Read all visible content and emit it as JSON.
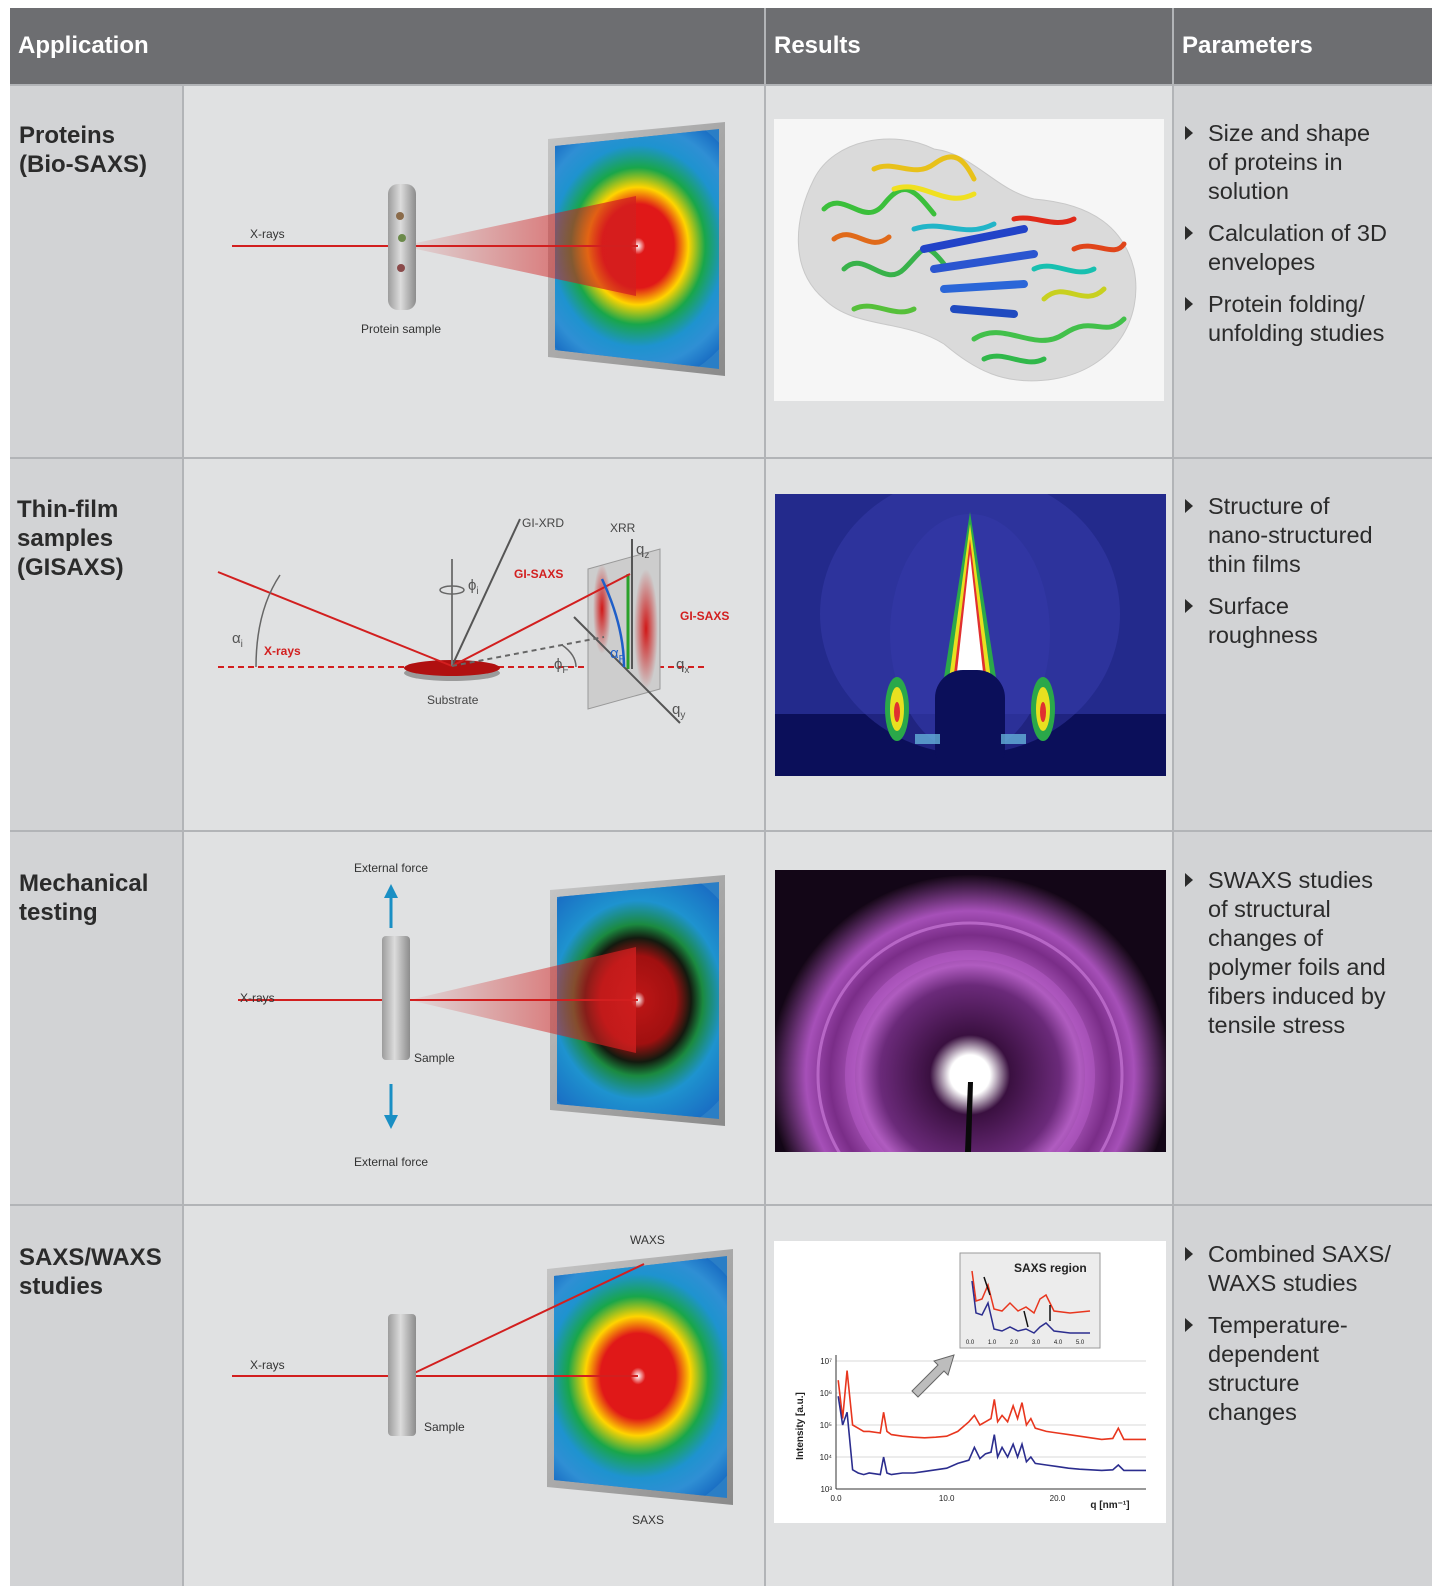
{
  "header": {
    "application": "Application",
    "results": "Results",
    "parameters": "Parameters"
  },
  "rows": [
    {
      "label": [
        "Proteins",
        "(Bio-SAXS)"
      ],
      "diagram": {
        "xrays": "X-rays",
        "sample": "Protein sample"
      },
      "params": [
        [
          "Size and shape",
          "of proteins in",
          "solution"
        ],
        [
          "Calculation of 3D",
          "envelopes"
        ],
        [
          "Protein folding/",
          "unfolding studies"
        ]
      ]
    },
    {
      "label": [
        "Thin-film",
        "samples",
        "(GISAXS)"
      ],
      "diagram": {
        "gixrd": "GI-XRD",
        "xrr": "XRR",
        "gisaxs_left": "GI-SAXS",
        "gisaxs_right": "GI-SAXS",
        "xrays": "X-rays",
        "substrate": "Substrate",
        "alpha_i": "α",
        "alpha_i_sub": "i",
        "phi_i": "ϕ",
        "phi_i_sub": "i",
        "phi_f": "ϕ",
        "phi_f_sub": "F",
        "alpha_f": "α",
        "alpha_f_sub": "F",
        "qz": "q",
        "qz_sub": "z",
        "qx": "q",
        "qx_sub": "x",
        "qy": "q",
        "qy_sub": "y"
      },
      "params": [
        [
          "Structure of",
          "nano-structured",
          "thin films"
        ],
        [
          "Surface",
          "roughness"
        ]
      ]
    },
    {
      "label": [
        "Mechanical",
        "testing"
      ],
      "diagram": {
        "force_top": "External force",
        "force_bottom": "External force",
        "xrays": "X-rays",
        "sample": "Sample"
      },
      "params": [
        [
          "SWAXS studies",
          "of structural",
          "changes of",
          "polymer foils and",
          "fibers induced by",
          "tensile stress"
        ]
      ]
    },
    {
      "label": [
        "SAXS/WAXS",
        "studies"
      ],
      "diagram": {
        "waxs": "WAXS",
        "saxs": "SAXS",
        "xrays": "X-rays",
        "sample": "Sample"
      },
      "params": [
        [
          "Combined SAXS/",
          "WAXS studies"
        ],
        [
          "Temperature-",
          "dependent",
          "structure",
          "changes"
        ]
      ]
    }
  ],
  "chart_data": {
    "type": "line",
    "title": "",
    "inset_title": "SAXS region",
    "xlabel": "q [nm⁻¹]",
    "ylabel": "Intensity [a.u.]",
    "y_scale": "log",
    "x_ticks": [
      "0.0",
      "10.0",
      "20.0"
    ],
    "y_ticks": [
      "10³",
      "10⁴",
      "10⁵",
      "10⁶",
      "10⁷"
    ],
    "inset_x_ticks": [
      "0.0",
      "1.0",
      "2.0",
      "3.0",
      "4.0",
      "5.0"
    ],
    "xlim": [
      0,
      28
    ],
    "series": [
      {
        "color": "#e8361e",
        "x": [
          0.2,
          0.6,
          1.0,
          1.5,
          2.0,
          2.5,
          3.0,
          4.0,
          4.3,
          4.6,
          5,
          6,
          7,
          8,
          9,
          10,
          11,
          12,
          12.5,
          13,
          13.5,
          14,
          14.3,
          14.6,
          15,
          15.5,
          16,
          16.4,
          16.8,
          17.2,
          17.6,
          18,
          19,
          20,
          21,
          22,
          23,
          24,
          25,
          25.5,
          26,
          27,
          28
        ],
        "y": [
          6.4,
          5.2,
          6.7,
          5.0,
          4.9,
          4.8,
          4.8,
          4.75,
          5.4,
          4.8,
          4.7,
          4.65,
          4.62,
          4.6,
          4.62,
          4.65,
          4.8,
          5.1,
          5.3,
          5.0,
          5.1,
          5.2,
          5.8,
          5.1,
          5.3,
          5.1,
          5.6,
          5.2,
          5.7,
          5.0,
          5.2,
          4.9,
          4.8,
          4.75,
          4.7,
          4.65,
          4.6,
          4.55,
          4.58,
          4.9,
          4.55,
          4.55,
          4.55
        ]
      },
      {
        "color": "#2b2d8e",
        "x": [
          0.2,
          0.6,
          1.0,
          1.5,
          2.0,
          2.5,
          3.0,
          4.0,
          4.3,
          4.6,
          5,
          6,
          7,
          8,
          9,
          10,
          11,
          12,
          12.5,
          13,
          13.5,
          14,
          14.3,
          14.6,
          15,
          15.5,
          16,
          16.4,
          16.8,
          17.2,
          17.6,
          18,
          19,
          20,
          21,
          22,
          23,
          24,
          25,
          25.5,
          26,
          27,
          28
        ],
        "y": [
          5.9,
          5.0,
          5.4,
          3.6,
          3.5,
          3.45,
          3.5,
          3.45,
          4.0,
          3.5,
          3.45,
          3.5,
          3.5,
          3.55,
          3.6,
          3.65,
          3.8,
          3.9,
          4.3,
          3.95,
          4.1,
          4.15,
          4.7,
          4.0,
          4.3,
          4.0,
          4.4,
          4.0,
          4.4,
          3.85,
          4.0,
          3.8,
          3.75,
          3.7,
          3.65,
          3.62,
          3.6,
          3.58,
          3.6,
          3.75,
          3.58,
          3.58,
          3.58
        ]
      }
    ]
  },
  "colors": {
    "header_bg": "#6d6e71",
    "label_col_bg": "#d2d3d5",
    "cell_bg": "#e0e1e2",
    "xray_red": "#d21f1f",
    "arrow_blue": "#1a8fc4"
  }
}
